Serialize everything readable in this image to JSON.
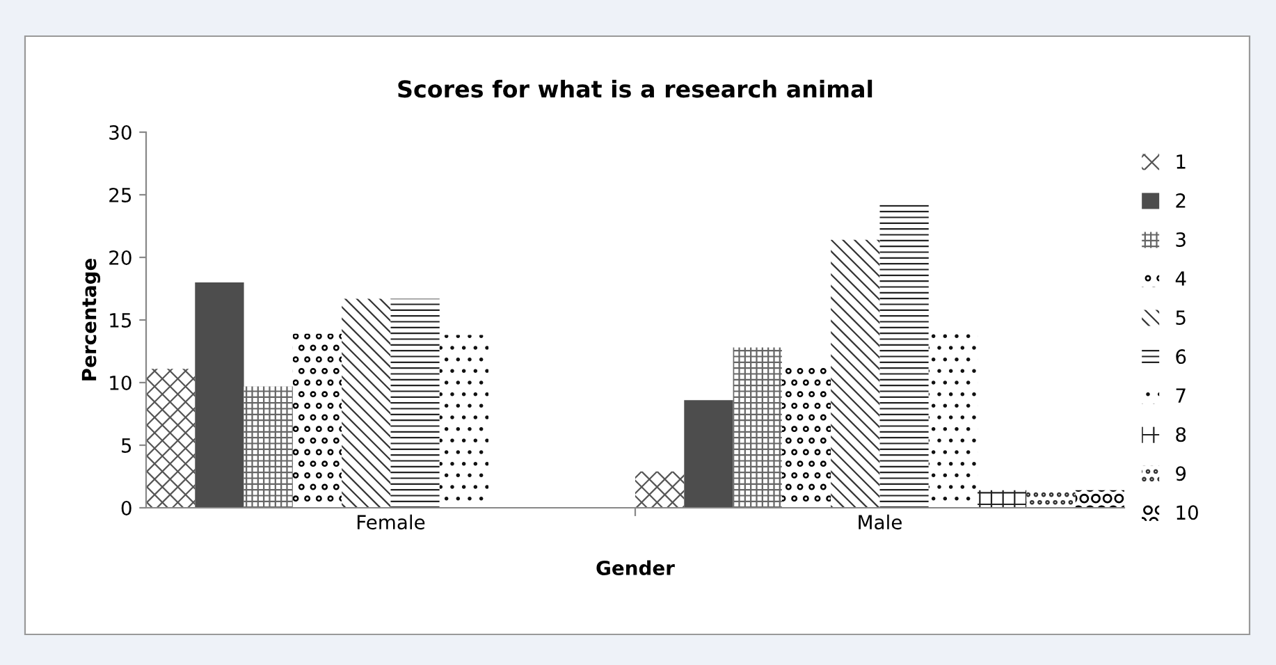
{
  "chart_data": {
    "type": "bar",
    "title": "Scores for what is a research animal",
    "xlabel": "Gender",
    "ylabel": "Percentage",
    "categories": [
      "Female",
      "Male"
    ],
    "series": [
      {
        "name": "1",
        "color": "#555555",
        "values": [
          11.1,
          2.9
        ]
      },
      {
        "name": "2",
        "color": "#4d4d4d",
        "values": [
          18.0,
          8.6
        ]
      },
      {
        "name": "3",
        "color": "#666666",
        "values": [
          9.7,
          12.8
        ]
      },
      {
        "name": "4",
        "color": "#000000",
        "values": [
          13.9,
          11.4
        ]
      },
      {
        "name": "5",
        "color": "#333333",
        "values": [
          16.7,
          21.4
        ]
      },
      {
        "name": "6",
        "color": "#222222",
        "values": [
          16.7,
          24.2
        ]
      },
      {
        "name": "7",
        "color": "#111111",
        "values": [
          13.8,
          14.3
        ]
      },
      {
        "name": "8",
        "color": "#222222",
        "values": [
          0,
          1.4
        ]
      },
      {
        "name": "9",
        "color": "#333333",
        "values": [
          0,
          1.4
        ]
      },
      {
        "name": "10",
        "color": "#000000",
        "values": [
          0,
          1.4
        ]
      }
    ],
    "ylim": [
      0,
      30
    ],
    "yticks": [
      0,
      5,
      10,
      15,
      20,
      25,
      30
    ],
    "grid": false,
    "legend": "right"
  }
}
